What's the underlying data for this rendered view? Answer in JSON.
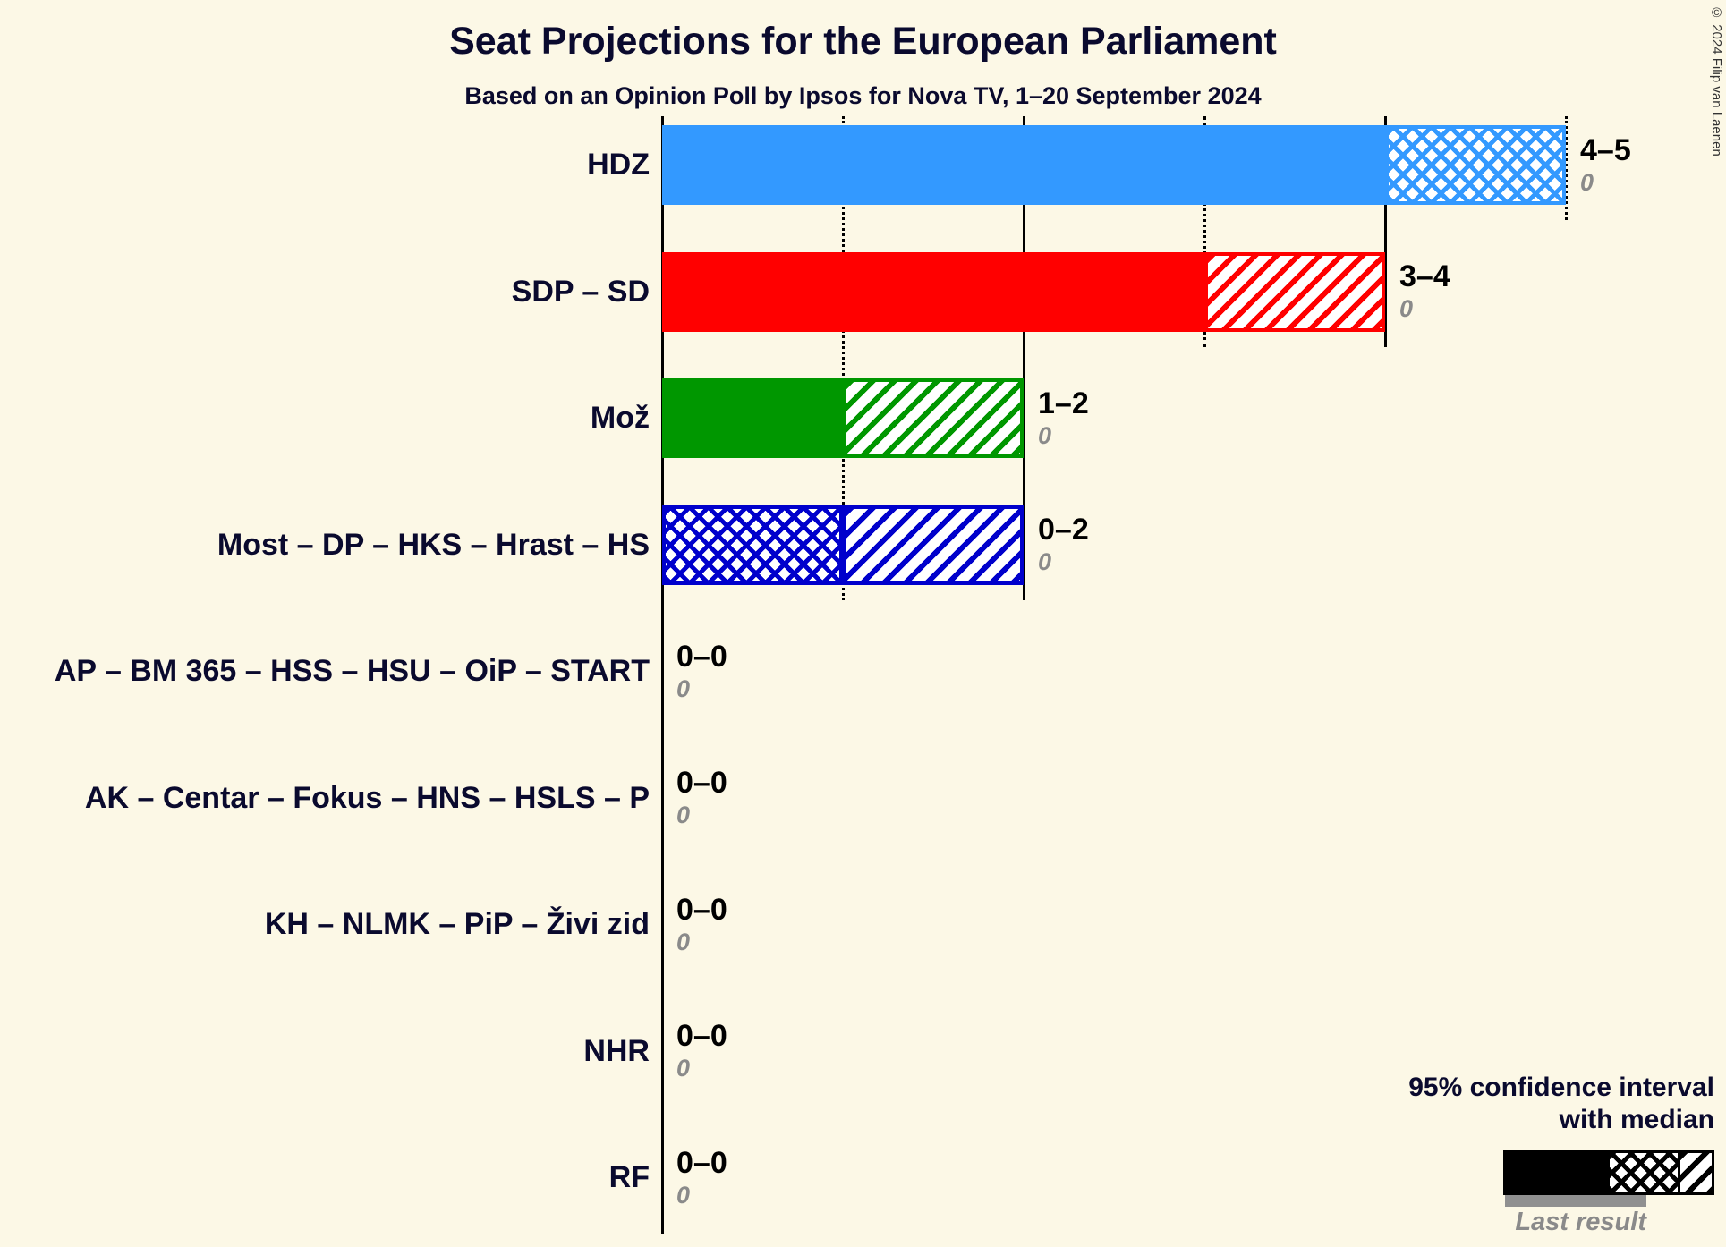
{
  "page": {
    "background": "#FCF8E6",
    "copyright": "© 2024 Filip van Laenen"
  },
  "legend": {
    "line1": "95% confidence interval",
    "line2": "with median",
    "last_result_label": "Last result"
  },
  "chart_data": {
    "type": "bar",
    "orientation": "horizontal",
    "title": "Seat Projections for the European Parliament",
    "subtitle": "Based on an Opinion Poll by Ipsos for Nova TV, 1–20 September 2024",
    "x_axis": {
      "min": 0,
      "max": 5,
      "solid_ticks": [
        2,
        4
      ],
      "dotted_ticks": [
        1,
        3,
        5
      ]
    },
    "parties": [
      {
        "name": "HDZ",
        "ci_label": "4–5",
        "ci_low": 4,
        "ci_high": 5,
        "median": 5,
        "last_result": 0,
        "color": "#3399FF",
        "segments": [
          {
            "pattern": "solid",
            "from": 0,
            "to": 4
          },
          {
            "pattern": "crosshatch",
            "from": 4,
            "to": 5
          }
        ]
      },
      {
        "name": "SDP – SD",
        "ci_label": "3–4",
        "ci_low": 3,
        "ci_high": 4,
        "median": 3,
        "last_result": 0,
        "color": "#FF0000",
        "segments": [
          {
            "pattern": "solid",
            "from": 0,
            "to": 3
          },
          {
            "pattern": "diagonal",
            "from": 3,
            "to": 4
          }
        ]
      },
      {
        "name": "Mož",
        "ci_label": "1–2",
        "ci_low": 1,
        "ci_high": 2,
        "median": 1,
        "last_result": 0,
        "color": "#009700",
        "segments": [
          {
            "pattern": "solid",
            "from": 0,
            "to": 1
          },
          {
            "pattern": "diagonal",
            "from": 1,
            "to": 2
          }
        ]
      },
      {
        "name": "Most – DP – HKS – Hrast – HS",
        "ci_label": "0–2",
        "ci_low": 0,
        "ci_high": 2,
        "median": 1,
        "last_result": 0,
        "color": "#0000CC",
        "segments": [
          {
            "pattern": "crosshatch",
            "from": 0,
            "to": 1
          },
          {
            "pattern": "diagonal",
            "from": 1,
            "to": 2
          }
        ]
      },
      {
        "name": "AP – BM 365 – HSS – HSU – OiP – START",
        "ci_label": "0–0",
        "ci_low": 0,
        "ci_high": 0,
        "median": 0,
        "last_result": 0,
        "color": "#000000",
        "segments": []
      },
      {
        "name": "AK – Centar – Fokus – HNS – HSLS – P",
        "ci_label": "0–0",
        "ci_low": 0,
        "ci_high": 0,
        "median": 0,
        "last_result": 0,
        "color": "#000000",
        "segments": []
      },
      {
        "name": "KH – NLMK – PiP – Živi zid",
        "ci_label": "0–0",
        "ci_low": 0,
        "ci_high": 0,
        "median": 0,
        "last_result": 0,
        "color": "#000000",
        "segments": []
      },
      {
        "name": "NHR",
        "ci_label": "0–0",
        "ci_low": 0,
        "ci_high": 0,
        "median": 0,
        "last_result": 0,
        "color": "#000000",
        "segments": []
      },
      {
        "name": "RF",
        "ci_label": "0–0",
        "ci_low": 0,
        "ci_high": 0,
        "median": 0,
        "last_result": 0,
        "color": "#000000",
        "segments": []
      }
    ]
  }
}
